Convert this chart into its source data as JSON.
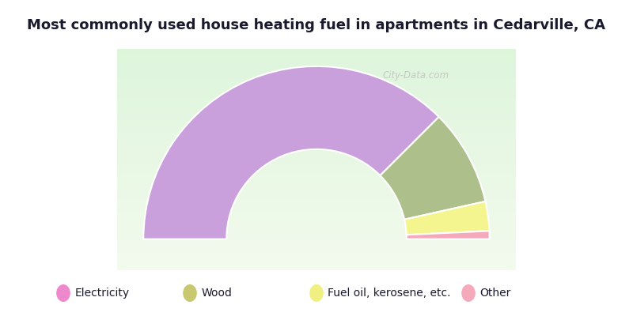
{
  "title": "Most commonly used house heating fuel in apartments in Cedarville, CA",
  "title_fontsize": 13,
  "title_bg_color": "#00EFEF",
  "legend_bg_color": "#00EFEF",
  "segments": [
    {
      "label": "Electricity",
      "value": 75.0,
      "color": "#C9A0DC"
    },
    {
      "label": "Wood",
      "value": 18.0,
      "color": "#ADBF8A"
    },
    {
      "label": "Fuel oil, kerosene, etc.",
      "value": 5.5,
      "color": "#F5F590"
    },
    {
      "label": "Other",
      "value": 1.5,
      "color": "#F5AABB"
    }
  ],
  "legend_marker_colors": [
    "#EE88CC",
    "#C8C870",
    "#F0F080",
    "#F5AABB"
  ],
  "legend_fontsize": 10,
  "watermark": "City-Data.com"
}
